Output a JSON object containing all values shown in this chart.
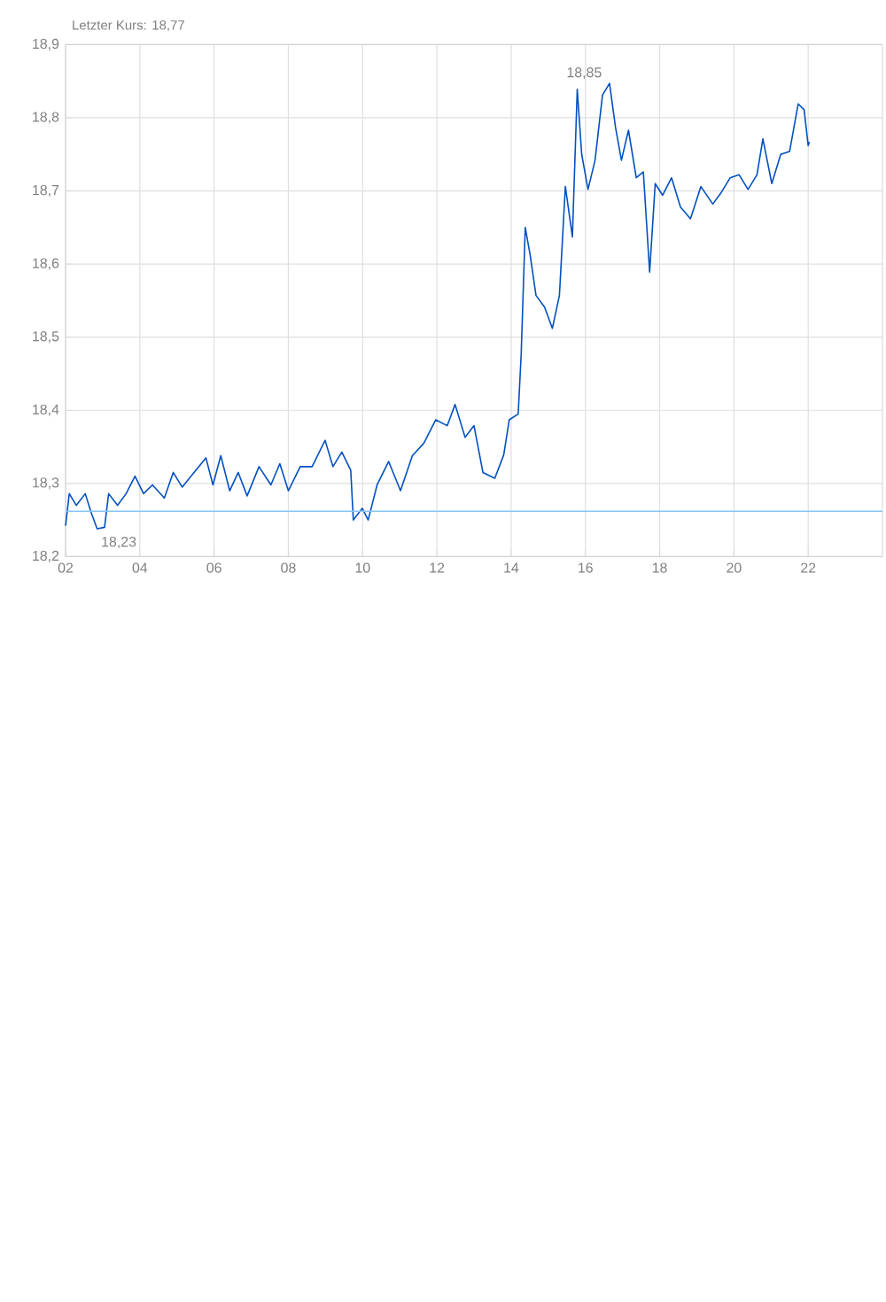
{
  "chart_data": {
    "type": "line",
    "title": "Letzter Kurs: 18,77",
    "x": [
      2.0,
      2.1,
      2.29,
      2.53,
      2.69,
      2.85,
      3.05,
      3.16,
      3.4,
      3.63,
      3.87,
      4.1,
      4.34,
      4.66,
      4.9,
      5.14,
      5.46,
      5.78,
      5.97,
      6.18,
      6.42,
      6.65,
      6.89,
      7.21,
      7.53,
      7.77,
      8.0,
      8.32,
      8.64,
      8.99,
      9.2,
      9.44,
      9.68,
      9.75,
      9.99,
      10.15,
      10.39,
      10.7,
      11.02,
      11.34,
      11.65,
      11.97,
      12.28,
      12.49,
      12.76,
      13.0,
      13.24,
      13.56,
      13.8,
      13.95,
      14.19,
      14.27,
      14.38,
      14.51,
      14.67,
      14.9,
      15.11,
      15.3,
      15.46,
      15.65,
      15.78,
      15.9,
      16.07,
      16.26,
      16.46,
      16.65,
      16.81,
      16.97,
      17.16,
      17.37,
      17.56,
      17.73,
      17.88,
      18.08,
      18.32,
      18.56,
      18.83,
      19.11,
      19.43,
      19.66,
      19.9,
      20.14,
      20.38,
      20.62,
      20.78,
      21.02,
      21.26,
      21.5,
      21.73,
      21.89,
      22.0,
      22.03
    ],
    "series": [
      {
        "color": "#0050c0",
        "values": [
          18.242,
          18.286,
          18.27,
          18.286,
          18.26,
          18.238,
          18.24,
          18.286,
          18.27,
          18.286,
          18.31,
          18.286,
          18.298,
          18.28,
          18.315,
          18.295,
          18.315,
          18.335,
          18.298,
          18.338,
          18.29,
          18.315,
          18.283,
          18.323,
          18.298,
          18.327,
          18.29,
          18.323,
          18.323,
          18.359,
          18.323,
          18.343,
          18.318,
          18.25,
          18.266,
          18.25,
          18.298,
          18.33,
          18.29,
          18.338,
          18.355,
          18.387,
          18.379,
          18.408,
          18.363,
          18.379,
          18.315,
          18.307,
          18.339,
          18.387,
          18.395,
          18.476,
          18.65,
          18.613,
          18.557,
          18.541,
          18.512,
          18.557,
          18.706,
          18.637,
          18.839,
          18.75,
          18.702,
          18.742,
          18.831,
          18.847,
          18.787,
          18.742,
          18.783,
          18.718,
          18.726,
          18.589,
          18.71,
          18.694,
          18.718,
          18.678,
          18.662,
          18.706,
          18.682,
          18.698,
          18.718,
          18.722,
          18.702,
          18.722,
          18.771,
          18.71,
          18.75,
          18.754,
          18.819,
          18.811,
          18.762,
          18.767
        ]
      }
    ],
    "xlim": [
      2,
      24
    ],
    "xticks": [
      {
        "value": 2,
        "label": "02"
      },
      {
        "value": 4,
        "label": "04"
      },
      {
        "value": 6,
        "label": "06"
      },
      {
        "value": 8,
        "label": "08"
      },
      {
        "value": 10,
        "label": "10"
      },
      {
        "value": 12,
        "label": "12"
      },
      {
        "value": 14,
        "label": "14"
      },
      {
        "value": 16,
        "label": "16"
      },
      {
        "value": 18,
        "label": "18"
      },
      {
        "value": 20,
        "label": "20"
      },
      {
        "value": 22,
        "label": "22"
      }
    ],
    "ylim": [
      18.2,
      18.9
    ],
    "yticks": [
      {
        "value": 18.2,
        "label": "18,2"
      },
      {
        "value": 18.3,
        "label": "18,3"
      },
      {
        "value": 18.4,
        "label": "18,4"
      },
      {
        "value": 18.5,
        "label": "18,5"
      },
      {
        "value": 18.6,
        "label": "18,6"
      },
      {
        "value": 18.7,
        "label": "18,7"
      },
      {
        "value": 18.8,
        "label": "18,8"
      },
      {
        "value": 18.9,
        "label": "18,9"
      }
    ],
    "ref_lines": [
      {
        "axis": "y",
        "value": 18.262,
        "color": "#88c4f4"
      }
    ],
    "annotations": [
      {
        "text": "18,85",
        "x": 16.5,
        "y": 18.85
      },
      {
        "text": "18,23",
        "x": 2.9,
        "y": 18.23
      }
    ],
    "grid": true,
    "marker": "none",
    "line_style": "solid"
  }
}
